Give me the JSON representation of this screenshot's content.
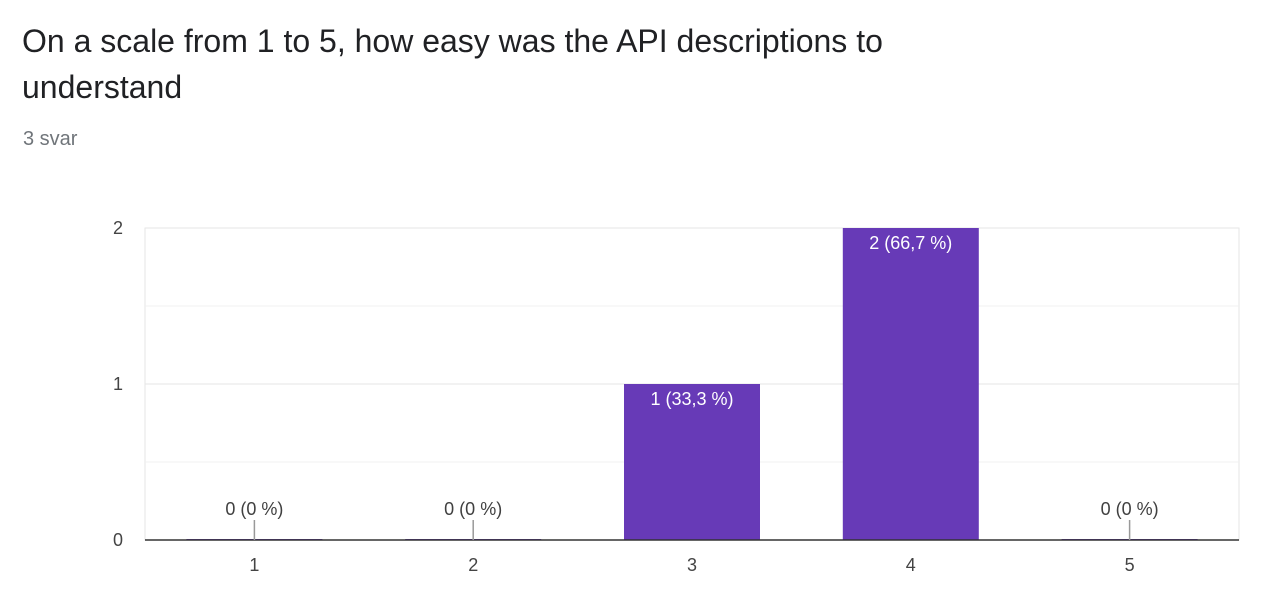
{
  "question": {
    "title": "On a scale from 1 to 5, how easy was the API descriptions to understand",
    "response_count": "3 svar"
  },
  "colors": {
    "bar": "#673ab7",
    "gridline": "#e6e6e6",
    "minor_gridline": "#f0f0f0",
    "axis": "#333333",
    "leader": "#999999"
  },
  "chart_data": {
    "type": "bar",
    "title": "",
    "xlabel": "",
    "ylabel": "",
    "categories": [
      "1",
      "2",
      "3",
      "4",
      "5"
    ],
    "values": [
      0,
      0,
      1,
      2,
      0
    ],
    "data_labels": [
      "0 (0 %)",
      "0 (0 %)",
      "1 (33,3 %)",
      "2 (66,7 %)",
      "0 (0 %)"
    ],
    "y_ticks": [
      0,
      1,
      2
    ],
    "ylim": [
      0,
      2
    ],
    "grid": true,
    "legend": "none"
  }
}
